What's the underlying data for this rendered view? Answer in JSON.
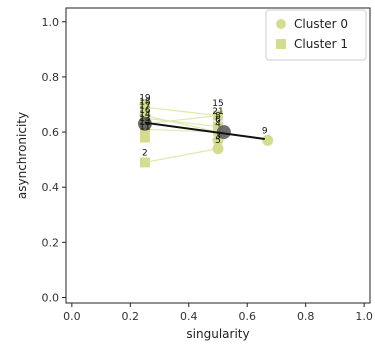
{
  "chart_data": {
    "type": "scatter",
    "title": "",
    "xlabel": "singularity",
    "ylabel": "asynchronicity",
    "xlim": [
      -0.02,
      1.02
    ],
    "ylim": [
      -0.02,
      1.05
    ],
    "x_ticks": [
      "0.0",
      "0.2",
      "0.4",
      "0.6",
      "0.8",
      "1.0"
    ],
    "y_ticks": [
      "0.0",
      "0.2",
      "0.4",
      "0.6",
      "0.8",
      "1.0"
    ],
    "grid": false,
    "legend_position": "top-right",
    "point_color": "#d4dc8e",
    "line_color": "#e2e8b0",
    "trend_color": "#111111",
    "center_color": "#555555",
    "series": [
      {
        "name": "Cluster 0",
        "marker": "circle",
        "points": [
          {
            "x": 0.25,
            "y": 0.7
          },
          {
            "x": 0.25,
            "y": 0.66
          },
          {
            "x": 0.25,
            "y": 0.63
          },
          {
            "x": 0.5,
            "y": 0.6
          },
          {
            "x": 0.5,
            "y": 0.57
          },
          {
            "x": 0.5,
            "y": 0.54
          },
          {
            "x": 0.67,
            "y": 0.57
          }
        ]
      },
      {
        "name": "Cluster 1",
        "marker": "square",
        "points": [
          {
            "x": 0.25,
            "y": 0.69
          },
          {
            "x": 0.25,
            "y": 0.65
          },
          {
            "x": 0.25,
            "y": 0.61
          },
          {
            "x": 0.25,
            "y": 0.58
          },
          {
            "x": 0.25,
            "y": 0.49
          },
          {
            "x": 0.5,
            "y": 0.66
          },
          {
            "x": 0.5,
            "y": 0.62
          }
        ]
      }
    ],
    "edges": [
      {
        "x1": 0.25,
        "y1": 0.69,
        "x2": 0.5,
        "y2": 0.66
      },
      {
        "x1": 0.25,
        "y1": 0.65,
        "x2": 0.5,
        "y2": 0.62
      },
      {
        "x1": 0.25,
        "y1": 0.66,
        "x2": 0.5,
        "y2": 0.6
      },
      {
        "x1": 0.25,
        "y1": 0.61,
        "x2": 0.5,
        "y2": 0.6
      },
      {
        "x1": 0.25,
        "y1": 0.49,
        "x2": 0.5,
        "y2": 0.54
      },
      {
        "x1": 0.25,
        "y1": 0.63,
        "x2": 0.5,
        "y2": 0.66
      },
      {
        "x1": 0.5,
        "y1": 0.6,
        "x2": 0.67,
        "y2": 0.57
      }
    ],
    "labels": [
      {
        "text": "19",
        "x": 0.25,
        "y": 0.715
      },
      {
        "text": "18",
        "x": 0.25,
        "y": 0.7
      },
      {
        "text": "17",
        "x": 0.25,
        "y": 0.685
      },
      {
        "text": "16",
        "x": 0.25,
        "y": 0.67
      },
      {
        "text": "14",
        "x": 0.25,
        "y": 0.655
      },
      {
        "text": "13",
        "x": 0.25,
        "y": 0.64
      },
      {
        "text": "12",
        "x": 0.25,
        "y": 0.625
      },
      {
        "text": "11",
        "x": 0.25,
        "y": 0.61
      },
      {
        "text": "2",
        "x": 0.25,
        "y": 0.515
      },
      {
        "text": "15",
        "x": 0.5,
        "y": 0.695
      },
      {
        "text": "21",
        "x": 0.5,
        "y": 0.665
      },
      {
        "text": "8",
        "x": 0.5,
        "y": 0.65
      },
      {
        "text": "6",
        "x": 0.5,
        "y": 0.635
      },
      {
        "text": "4",
        "x": 0.5,
        "y": 0.62
      },
      {
        "text": "3",
        "x": 0.5,
        "y": 0.575
      },
      {
        "text": "5",
        "x": 0.5,
        "y": 0.56
      },
      {
        "text": "9",
        "x": 0.66,
        "y": 0.595
      }
    ],
    "centers": [
      {
        "x": 0.25,
        "y": 0.63
      },
      {
        "x": 0.52,
        "y": 0.6
      }
    ],
    "trend_line": {
      "x1": 0.25,
      "y1": 0.634,
      "x2": 0.66,
      "y2": 0.575
    }
  }
}
